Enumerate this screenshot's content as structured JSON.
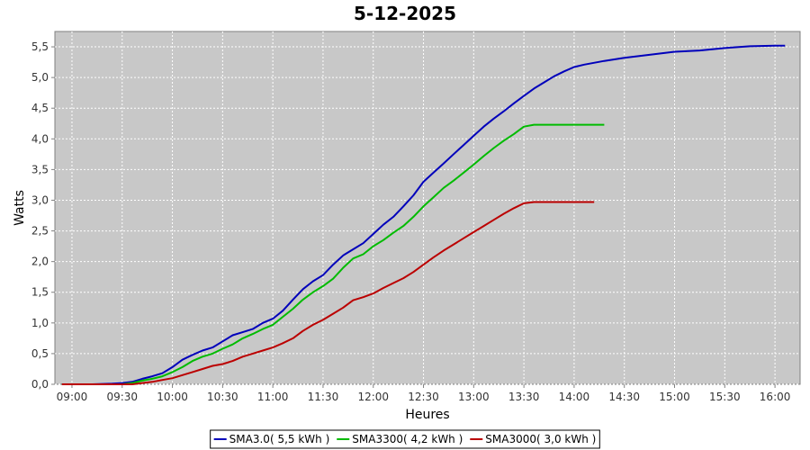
{
  "chart_data": {
    "type": "line",
    "title": "5-12-2025",
    "xlabel": "Heures",
    "ylabel": "Watts",
    "x_unit": "time of day (hours)",
    "xlim": [
      8.83,
      16.25
    ],
    "ylim": [
      0,
      5.75
    ],
    "x_ticks": [
      {
        "value": 9.0,
        "label": "09:00"
      },
      {
        "value": 9.5,
        "label": "09:30"
      },
      {
        "value": 10.0,
        "label": "10:00"
      },
      {
        "value": 10.5,
        "label": "10:30"
      },
      {
        "value": 11.0,
        "label": "11:00"
      },
      {
        "value": 11.5,
        "label": "11:30"
      },
      {
        "value": 12.0,
        "label": "12:00"
      },
      {
        "value": 12.5,
        "label": "12:30"
      },
      {
        "value": 13.0,
        "label": "13:00"
      },
      {
        "value": 13.5,
        "label": "13:30"
      },
      {
        "value": 14.0,
        "label": "14:00"
      },
      {
        "value": 14.5,
        "label": "14:30"
      },
      {
        "value": 15.0,
        "label": "15:00"
      },
      {
        "value": 15.5,
        "label": "15:30"
      },
      {
        "value": 16.0,
        "label": "16:00"
      }
    ],
    "y_ticks": [
      {
        "value": 0,
        "label": "0,0"
      },
      {
        "value": 0.5,
        "label": "0,5"
      },
      {
        "value": 1.0,
        "label": "1,0"
      },
      {
        "value": 1.5,
        "label": "1,5"
      },
      {
        "value": 2.0,
        "label": "2,0"
      },
      {
        "value": 2.5,
        "label": "2,5"
      },
      {
        "value": 3.0,
        "label": "3,0"
      },
      {
        "value": 3.5,
        "label": "3,5"
      },
      {
        "value": 4.0,
        "label": "4,0"
      },
      {
        "value": 4.5,
        "label": "4,5"
      },
      {
        "value": 5.0,
        "label": "5,0"
      },
      {
        "value": 5.5,
        "label": "5,5"
      }
    ],
    "grid": true,
    "legend_position": "bottom-center",
    "background_color": "#c8c8c8",
    "series": [
      {
        "name": "SMA3.0( 5,5 kWh )",
        "color": "#0000bb",
        "points": [
          [
            8.9,
            0.0
          ],
          [
            9.2,
            0.0
          ],
          [
            9.4,
            0.01
          ],
          [
            9.5,
            0.02
          ],
          [
            9.6,
            0.04
          ],
          [
            9.7,
            0.09
          ],
          [
            9.8,
            0.13
          ],
          [
            9.9,
            0.18
          ],
          [
            10.0,
            0.28
          ],
          [
            10.1,
            0.4
          ],
          [
            10.2,
            0.48
          ],
          [
            10.3,
            0.55
          ],
          [
            10.4,
            0.6
          ],
          [
            10.5,
            0.7
          ],
          [
            10.6,
            0.8
          ],
          [
            10.7,
            0.85
          ],
          [
            10.8,
            0.9
          ],
          [
            10.9,
            1.0
          ],
          [
            11.0,
            1.07
          ],
          [
            11.1,
            1.2
          ],
          [
            11.2,
            1.38
          ],
          [
            11.3,
            1.55
          ],
          [
            11.4,
            1.68
          ],
          [
            11.5,
            1.78
          ],
          [
            11.6,
            1.95
          ],
          [
            11.7,
            2.1
          ],
          [
            11.8,
            2.2
          ],
          [
            11.9,
            2.3
          ],
          [
            12.0,
            2.45
          ],
          [
            12.1,
            2.6
          ],
          [
            12.2,
            2.73
          ],
          [
            12.3,
            2.9
          ],
          [
            12.4,
            3.08
          ],
          [
            12.5,
            3.3
          ],
          [
            12.6,
            3.45
          ],
          [
            12.7,
            3.6
          ],
          [
            12.8,
            3.75
          ],
          [
            12.9,
            3.9
          ],
          [
            13.0,
            4.05
          ],
          [
            13.1,
            4.2
          ],
          [
            13.2,
            4.33
          ],
          [
            13.3,
            4.45
          ],
          [
            13.4,
            4.58
          ],
          [
            13.5,
            4.7
          ],
          [
            13.6,
            4.82
          ],
          [
            13.7,
            4.92
          ],
          [
            13.8,
            5.02
          ],
          [
            13.9,
            5.1
          ],
          [
            14.0,
            5.17
          ],
          [
            14.1,
            5.21
          ],
          [
            14.3,
            5.27
          ],
          [
            14.5,
            5.32
          ],
          [
            14.75,
            5.37
          ],
          [
            15.0,
            5.42
          ],
          [
            15.25,
            5.44
          ],
          [
            15.5,
            5.48
          ],
          [
            15.75,
            5.51
          ],
          [
            16.0,
            5.52
          ],
          [
            16.1,
            5.52
          ]
        ]
      },
      {
        "name": "SMA3300( 4,2 kWh )",
        "color": "#00bb00",
        "points": [
          [
            8.9,
            0.0
          ],
          [
            9.5,
            0.0
          ],
          [
            9.6,
            0.02
          ],
          [
            9.7,
            0.06
          ],
          [
            9.8,
            0.09
          ],
          [
            9.9,
            0.13
          ],
          [
            10.0,
            0.2
          ],
          [
            10.1,
            0.28
          ],
          [
            10.2,
            0.38
          ],
          [
            10.3,
            0.45
          ],
          [
            10.4,
            0.5
          ],
          [
            10.5,
            0.58
          ],
          [
            10.6,
            0.65
          ],
          [
            10.7,
            0.75
          ],
          [
            10.8,
            0.82
          ],
          [
            10.9,
            0.9
          ],
          [
            11.0,
            0.97
          ],
          [
            11.1,
            1.1
          ],
          [
            11.2,
            1.23
          ],
          [
            11.3,
            1.38
          ],
          [
            11.4,
            1.5
          ],
          [
            11.5,
            1.6
          ],
          [
            11.6,
            1.72
          ],
          [
            11.7,
            1.9
          ],
          [
            11.8,
            2.05
          ],
          [
            11.9,
            2.12
          ],
          [
            12.0,
            2.25
          ],
          [
            12.1,
            2.35
          ],
          [
            12.2,
            2.47
          ],
          [
            12.3,
            2.58
          ],
          [
            12.4,
            2.73
          ],
          [
            12.5,
            2.9
          ],
          [
            12.6,
            3.05
          ],
          [
            12.7,
            3.2
          ],
          [
            12.8,
            3.32
          ],
          [
            12.9,
            3.45
          ],
          [
            13.0,
            3.58
          ],
          [
            13.1,
            3.72
          ],
          [
            13.2,
            3.85
          ],
          [
            13.3,
            3.97
          ],
          [
            13.4,
            4.08
          ],
          [
            13.5,
            4.2
          ],
          [
            13.6,
            4.23
          ],
          [
            14.0,
            4.23
          ],
          [
            14.3,
            4.23
          ]
        ]
      },
      {
        "name": "SMA3000( 3,0 kWh )",
        "color": "#bb0000",
        "points": [
          [
            8.9,
            0.0
          ],
          [
            9.6,
            0.0
          ],
          [
            9.7,
            0.02
          ],
          [
            9.8,
            0.04
          ],
          [
            9.9,
            0.07
          ],
          [
            10.0,
            0.1
          ],
          [
            10.1,
            0.15
          ],
          [
            10.2,
            0.2
          ],
          [
            10.3,
            0.25
          ],
          [
            10.4,
            0.3
          ],
          [
            10.5,
            0.33
          ],
          [
            10.6,
            0.38
          ],
          [
            10.7,
            0.45
          ],
          [
            10.8,
            0.5
          ],
          [
            10.9,
            0.55
          ],
          [
            11.0,
            0.6
          ],
          [
            11.1,
            0.67
          ],
          [
            11.2,
            0.75
          ],
          [
            11.3,
            0.87
          ],
          [
            11.4,
            0.97
          ],
          [
            11.5,
            1.05
          ],
          [
            11.6,
            1.15
          ],
          [
            11.7,
            1.25
          ],
          [
            11.8,
            1.37
          ],
          [
            11.9,
            1.42
          ],
          [
            12.0,
            1.48
          ],
          [
            12.1,
            1.57
          ],
          [
            12.2,
            1.65
          ],
          [
            12.3,
            1.73
          ],
          [
            12.4,
            1.83
          ],
          [
            12.5,
            1.95
          ],
          [
            12.6,
            2.07
          ],
          [
            12.7,
            2.18
          ],
          [
            12.8,
            2.28
          ],
          [
            12.9,
            2.38
          ],
          [
            13.0,
            2.48
          ],
          [
            13.1,
            2.58
          ],
          [
            13.2,
            2.68
          ],
          [
            13.3,
            2.78
          ],
          [
            13.4,
            2.87
          ],
          [
            13.5,
            2.95
          ],
          [
            13.6,
            2.97
          ],
          [
            14.0,
            2.97
          ],
          [
            14.2,
            2.97
          ]
        ]
      }
    ]
  }
}
